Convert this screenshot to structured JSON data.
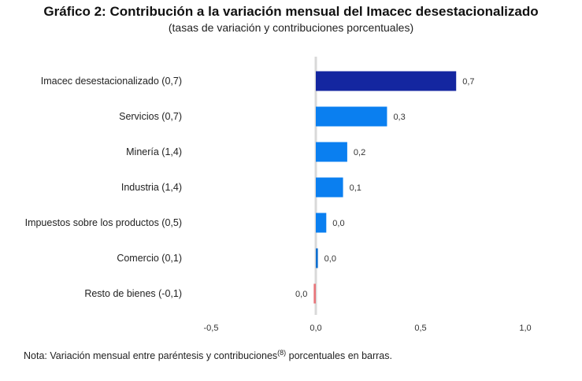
{
  "title": "Gráfico 2: Contribución a la variación mensual del Imacec desestacionalizado",
  "subtitle": "(tasas de variación y contribuciones porcentuales)",
  "note": {
    "prefix": "Nota: Variación mensual entre paréntesis y contribuciones",
    "sup": "(8)",
    "suffix": " porcentuales en barras."
  },
  "colors": {
    "highlight": "#1426a0",
    "bar": "#0a7ff0",
    "small": "#0f6fcf",
    "negative": "#e8757a",
    "zero_line": "#d9d9d9"
  },
  "chart_data": {
    "type": "bar",
    "orientation": "horizontal",
    "categories": [
      "Imacec desestacionalizado (0,7)",
      "Servicios (0,7)",
      "Minería (1,4)",
      "Industria (1,4)",
      "Impuestos sobre los productos (0,5)",
      "Comercio (0,1)",
      "Resto de bienes (-0,1)"
    ],
    "values": [
      0.67,
      0.34,
      0.15,
      0.13,
      0.05,
      0.01,
      -0.01
    ],
    "data_labels": [
      "0,7",
      "0,3",
      "0,2",
      "0,1",
      "0,0",
      "0,0",
      "0,0"
    ],
    "xlim": [
      -0.5,
      1.0
    ],
    "xticks": [
      -0.5,
      0.0,
      0.5,
      1.0
    ],
    "xtick_labels": [
      "-0,5",
      "0,0",
      "0,5",
      "1,0"
    ],
    "grid": false,
    "legend": "none"
  }
}
